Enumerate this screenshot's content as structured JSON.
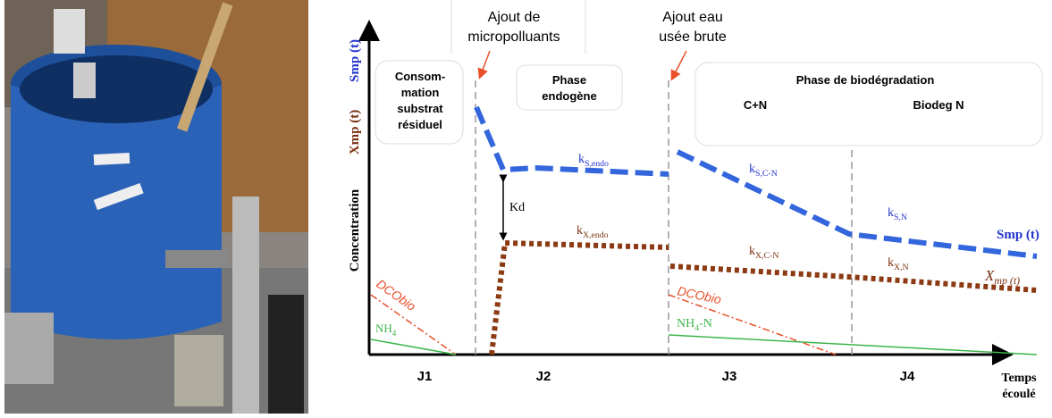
{
  "annotations": {
    "micropollutants": [
      "Ajout de",
      "micropolluants"
    ],
    "wastewater": [
      "Ajout eau",
      "usée brute"
    ]
  },
  "phases": {
    "residual": [
      "Consom-",
      "mation",
      "substrat",
      "résiduel"
    ],
    "endogenous": [
      "Phase",
      "endogène"
    ],
    "biodegradation": "Phase de biodégradation",
    "cn": "C+N",
    "biodeg_n": "Biodeg N"
  },
  "axis": {
    "y_smp": "Smp (t)",
    "y_xmp": "Xmp (t)",
    "y_label": "Concentration",
    "x_label": [
      "Temps",
      "écoulé"
    ]
  },
  "periods": [
    "J1",
    "J2",
    "J3",
    "J4"
  ],
  "curve_labels": {
    "ks_endo": {
      "main": "k",
      "sub": "S,endo"
    },
    "kx_endo": {
      "main": "k",
      "sub": "X,endo"
    },
    "kd": "Kd",
    "ks_cn": {
      "main": "k",
      "sub": "S,C-N"
    },
    "kx_cn": {
      "main": "k",
      "sub": "X,C-N"
    },
    "ks_n": {
      "main": "k",
      "sub": "S,N"
    },
    "kx_n": {
      "main": "k",
      "sub": "X,N"
    },
    "smp": "Smp (t)",
    "xmp": {
      "main": "X",
      "sub": "mp (t)"
    },
    "dcobio_1": "DCObio",
    "dcobio_2": "DCObio",
    "nh4_1": {
      "main": "NH",
      "sub": "4"
    },
    "nh4_2": {
      "main": "NH",
      "sub": "4",
      "tail": "-N"
    }
  }
}
